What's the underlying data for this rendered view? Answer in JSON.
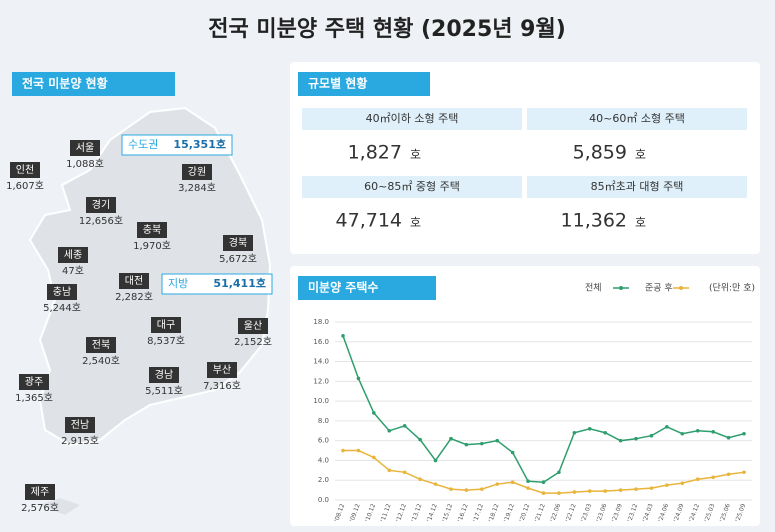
{
  "title": "전국 미분양 주택 현황  (2025년 9월)",
  "map": {
    "header": "전국 미분양 현황",
    "regions": [
      {
        "name": "서울",
        "value": "1,088호"
      },
      {
        "name": "인천",
        "value": "1,607호"
      },
      {
        "name": "강원",
        "value": "3,284호"
      },
      {
        "name": "경기",
        "value": "12,656호"
      },
      {
        "name": "충북",
        "value": "1,970호"
      },
      {
        "name": "경북",
        "value": "5,672호"
      },
      {
        "name": "세종",
        "value": "47호"
      },
      {
        "name": "대전",
        "value": "2,282호"
      },
      {
        "name": "충남",
        "value": "5,244호"
      },
      {
        "name": "대구",
        "value": "8,537호"
      },
      {
        "name": "울산",
        "value": "2,152호"
      },
      {
        "name": "전북",
        "value": "2,540호"
      },
      {
        "name": "경남",
        "value": "5,511호"
      },
      {
        "name": "부산",
        "value": "7,316호"
      },
      {
        "name": "광주",
        "value": "1,365호"
      },
      {
        "name": "전남",
        "value": "2,915호"
      },
      {
        "name": "제주",
        "value": "2,576호"
      }
    ],
    "callouts": [
      {
        "name": "수도권",
        "value": "15,351호"
      },
      {
        "name": "지방",
        "value": "51,411호"
      }
    ]
  },
  "size_table": {
    "header": "규모별 현황",
    "cells": [
      {
        "label": "40㎡이하 소형 주택",
        "value": "1,827",
        "unit": "호"
      },
      {
        "label": "40~60㎡ 소형 주택",
        "value": "5,859",
        "unit": "호"
      },
      {
        "label": "60~85㎡ 중형 주택",
        "value": "47,714",
        "unit": "호"
      },
      {
        "label": "85㎡초과 대형 주택",
        "value": "11,362",
        "unit": "호"
      }
    ]
  },
  "chart_data": {
    "type": "line",
    "title": "미분양 주택수",
    "unit_note": "(단위:만 호)",
    "categories": [
      "'08.12",
      "'09.12",
      "'10.12",
      "'11.12",
      "'12.12",
      "'13.12",
      "'14.12",
      "'15.12",
      "'16.12",
      "'17.12",
      "'18.12",
      "'19.12",
      "'20.12",
      "'21.12",
      "'22.06",
      "'22.12",
      "'23.03",
      "'23.06",
      "'23.09",
      "'23.12",
      "'24.03",
      "'24.06",
      "'24.09",
      "'24.12",
      "'25.03",
      "'25.06",
      "'25.09"
    ],
    "series": [
      {
        "name": "전체",
        "color": "#2e9e6e",
        "values": [
          16.6,
          12.3,
          8.8,
          7.0,
          7.5,
          6.1,
          4.0,
          6.2,
          5.6,
          5.7,
          6.0,
          4.8,
          1.9,
          1.8,
          2.8,
          6.8,
          7.2,
          6.8,
          6.0,
          6.2,
          6.5,
          7.4,
          6.7,
          7.0,
          6.9,
          6.3,
          6.7
        ]
      },
      {
        "name": "준공 후",
        "color": "#e8b43a",
        "values": [
          5.0,
          5.0,
          4.3,
          3.0,
          2.8,
          2.1,
          1.6,
          1.1,
          1.0,
          1.1,
          1.6,
          1.8,
          1.2,
          0.7,
          0.7,
          0.8,
          0.9,
          0.9,
          1.0,
          1.1,
          1.2,
          1.5,
          1.7,
          2.1,
          2.3,
          2.6,
          2.8
        ]
      }
    ],
    "ylim": [
      0,
      18
    ],
    "yticks": [
      {
        "value": 0,
        "label": "0.0"
      },
      {
        "value": 2,
        "label": "2.0"
      },
      {
        "value": 4,
        "label": "4.0"
      },
      {
        "value": 6,
        "label": "6.0"
      },
      {
        "value": 8,
        "label": "8.0"
      },
      {
        "value": 10,
        "label": "10.0"
      },
      {
        "value": 12,
        "label": "12.0"
      },
      {
        "value": 14,
        "label": "14.0"
      },
      {
        "value": 16,
        "label": "16.0"
      },
      {
        "value": 18,
        "label": "18.0"
      }
    ],
    "grid": true
  }
}
